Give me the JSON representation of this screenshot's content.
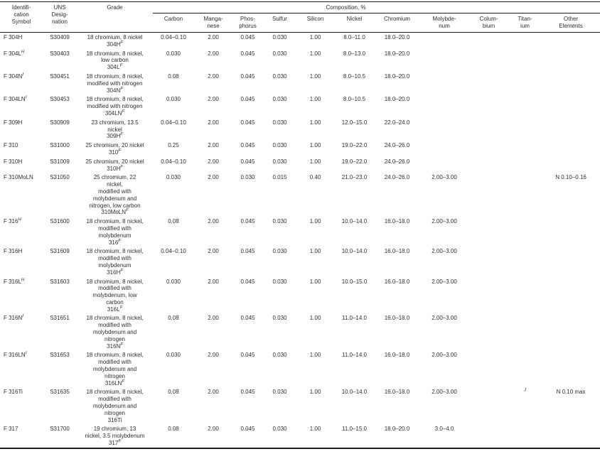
{
  "table": {
    "headers": {
      "id": [
        "Identifi-",
        "cation",
        "Symbol"
      ],
      "uns": [
        "UNS",
        "Desig-",
        "nation"
      ],
      "grade": "Grade",
      "composition": "Composition, %",
      "columns": [
        [
          "Carbon"
        ],
        [
          "Manga-",
          "nese"
        ],
        [
          "Phos-",
          "phorus"
        ],
        [
          "Sulfur"
        ],
        [
          "Silicon"
        ],
        [
          "Nickel"
        ],
        [
          "Chromium"
        ],
        [
          "Molybde-",
          "num"
        ],
        [
          "Colum-",
          "bium"
        ],
        [
          "Titan-",
          "ium"
        ],
        [
          "Other",
          "Elements"
        ]
      ]
    },
    "rows": [
      {
        "id": "F 304H",
        "id_sup": "",
        "uns": "S30409",
        "grade_lines": [
          "18 chromium, 8 nickel"
        ],
        "grade_name": "304H",
        "grade_sup": "F",
        "carbon": "0.04–0.10",
        "manganese": "2.00",
        "phosphorus": "0.045",
        "sulfur": "0.030",
        "silicon": "1.00",
        "nickel": "8.0–11.0",
        "chromium": "18.0–20.0",
        "molybdenum": "",
        "columbium": "",
        "titanium": "",
        "titanium_sup": "",
        "other": ""
      },
      {
        "id": "F 304L",
        "id_sup": "H",
        "uns": "S30403",
        "grade_lines": [
          "18 chromium, 8 nickel,",
          "low carbon"
        ],
        "grade_name": "304L",
        "grade_sup": "F",
        "carbon": "0.030",
        "manganese": "2.00",
        "phosphorus": "0.045",
        "sulfur": "0.030",
        "silicon": "1.00",
        "nickel": "8.0–13.0",
        "chromium": "18.0–20.0",
        "molybdenum": "",
        "columbium": "",
        "titanium": "",
        "titanium_sup": "",
        "other": ""
      },
      {
        "id": "F 304N",
        "id_sup": "I",
        "uns": "S30451",
        "grade_lines": [
          "18 chromium, 8 nickel,",
          "modified with nitrogen"
        ],
        "grade_name": "304N",
        "grade_sup": "F",
        "carbon": "0.08",
        "manganese": "2.00",
        "phosphorus": "0.045",
        "sulfur": "0.030",
        "silicon": "1.00",
        "nickel": "8.0–10.5",
        "chromium": "18.0–20.0",
        "molybdenum": "",
        "columbium": "",
        "titanium": "",
        "titanium_sup": "",
        "other": ""
      },
      {
        "id": "F 304LN",
        "id_sup": "I",
        "uns": "S30453",
        "grade_lines": [
          "18 chromium, 8 nickel,",
          "modified with nitrogen"
        ],
        "grade_name": "304LN",
        "grade_sup": "F",
        "carbon": "0.030",
        "manganese": "2.00",
        "phosphorus": "0.045",
        "sulfur": "0.030",
        "silicon": "1.00",
        "nickel": "8.0–10.5",
        "chromium": "18.0–20.0",
        "molybdenum": "",
        "columbium": "",
        "titanium": "",
        "titanium_sup": "",
        "other": ""
      },
      {
        "id": "F 309H",
        "id_sup": "",
        "uns": "S30909",
        "grade_lines": [
          "23 chromium, 13.5",
          "nickel"
        ],
        "grade_name": "309H",
        "grade_sup": "F",
        "carbon": "0.04–0.10",
        "manganese": "2.00",
        "phosphorus": "0.045",
        "sulfur": "0.030",
        "silicon": "1.00",
        "nickel": "12.0–15.0",
        "chromium": "22.0–24.0",
        "molybdenum": "",
        "columbium": "",
        "titanium": "",
        "titanium_sup": "",
        "other": ""
      },
      {
        "id": "F 310",
        "id_sup": "",
        "uns": "S31000",
        "grade_lines": [
          "25 chromium, 20 nickel"
        ],
        "grade_name": "310",
        "grade_sup": "F",
        "carbon": "0.25",
        "manganese": "2.00",
        "phosphorus": "0.045",
        "sulfur": "0.030",
        "silicon": "1.00",
        "nickel": "19.0–22.0",
        "chromium": "24.0–26.0",
        "molybdenum": "",
        "columbium": "",
        "titanium": "",
        "titanium_sup": "",
        "other": ""
      },
      {
        "id": "F 310H",
        "id_sup": "",
        "uns": "S31009",
        "grade_lines": [
          "25 chromium, 20 nickel"
        ],
        "grade_name": "310H",
        "grade_sup": "F",
        "carbon": "0.04–0.10",
        "manganese": "2.00",
        "phosphorus": "0.045",
        "sulfur": "0.030",
        "silicon": "1.00",
        "nickel": "19.0–22.0",
        "chromium": "24.0–26.0",
        "molybdenum": "",
        "columbium": "",
        "titanium": "",
        "titanium_sup": "",
        "other": ""
      },
      {
        "id": "F 310MoLN",
        "id_sup": "",
        "uns": "S31050",
        "grade_lines": [
          "25 chromium, 22",
          "nickel,",
          "modified with",
          "molybdenum and",
          "nitrogen, low carbon"
        ],
        "grade_name": "310MoLN",
        "grade_sup": "F",
        "carbon": "0.030",
        "manganese": "2.00",
        "phosphorus": "0.030",
        "sulfur": "0.015",
        "silicon": "0.40",
        "nickel": "21.0–23.0",
        "chromium": "24.0–26.0",
        "molybdenum": "2.00–3.00",
        "columbium": "",
        "titanium": "",
        "titanium_sup": "",
        "other": "N 0.10–0.16"
      },
      {
        "id": "F 316",
        "id_sup": "H",
        "uns": "S31600",
        "grade_lines": [
          "18 chromium, 8 nickel,",
          "modified with",
          "molybdenum"
        ],
        "grade_name": "316",
        "grade_sup": "F",
        "carbon": "0.08",
        "manganese": "2.00",
        "phosphorus": "0.045",
        "sulfur": "0.030",
        "silicon": "1.00",
        "nickel": "10.0–14.0",
        "chromium": "16.0–18.0",
        "molybdenum": "2.00–3.00",
        "columbium": "",
        "titanium": "",
        "titanium_sup": "",
        "other": ""
      },
      {
        "id": "F 316H",
        "id_sup": "",
        "uns": "S31609",
        "grade_lines": [
          "18 chromium, 8 nickel,",
          "modified with",
          "molybdenum"
        ],
        "grade_name": "316H",
        "grade_sup": "F",
        "carbon": "0.04–0.10",
        "manganese": "2.00",
        "phosphorus": "0.045",
        "sulfur": "0.030",
        "silicon": "1.00",
        "nickel": "10.0–14.0",
        "chromium": "16.0–18.0",
        "molybdenum": "2.00–3.00",
        "columbium": "",
        "titanium": "",
        "titanium_sup": "",
        "other": ""
      },
      {
        "id": "F 316L",
        "id_sup": "H",
        "uns": "S31603",
        "grade_lines": [
          "18 chromium, 8 nickel,",
          "modified with",
          "molybdenum, low",
          "carbon"
        ],
        "grade_name": "316L",
        "grade_sup": "F",
        "carbon": "0.030",
        "manganese": "2.00",
        "phosphorus": "0.045",
        "sulfur": "0.030",
        "silicon": "1.00",
        "nickel": "10.0–15.0",
        "chromium": "16.0–18.0",
        "molybdenum": "2.00–3.00",
        "columbium": "",
        "titanium": "",
        "titanium_sup": "",
        "other": ""
      },
      {
        "id": "F 316N",
        "id_sup": "I",
        "uns": "S31651",
        "grade_lines": [
          "18 chromium, 8 nickel,",
          "modified with",
          "molybdenum and",
          "nitrogen"
        ],
        "grade_name": "316N",
        "grade_sup": "F",
        "carbon": "0.08",
        "manganese": "2.00",
        "phosphorus": "0.045",
        "sulfur": "0.030",
        "silicon": "1.00",
        "nickel": "11.0–14.0",
        "chromium": "16.0–18.0",
        "molybdenum": "2.00–3.00",
        "columbium": "",
        "titanium": "",
        "titanium_sup": "",
        "other": ""
      },
      {
        "id": "F 316LN",
        "id_sup": "I",
        "uns": "S31653",
        "grade_lines": [
          "18 chromium, 8 nickel,",
          "modified with",
          "molybdenum and",
          "nitrogen"
        ],
        "grade_name": "316LN",
        "grade_sup": "F",
        "carbon": "0.030",
        "manganese": "2.00",
        "phosphorus": "0.045",
        "sulfur": "0.030",
        "silicon": "1.00",
        "nickel": "11.0–14.0",
        "chromium": "16.0–18.0",
        "molybdenum": "2.00–3.00",
        "columbium": "",
        "titanium": "",
        "titanium_sup": "",
        "other": ""
      },
      {
        "id": "F 316Ti",
        "id_sup": "",
        "uns": "S31635",
        "grade_lines": [
          "18 chromium, 8 nickel,",
          "modified with",
          "molybdenum and",
          "nitrogen"
        ],
        "grade_name": "316Ti",
        "grade_sup": "",
        "carbon": "0.08",
        "manganese": "2.00",
        "phosphorus": "0.045",
        "sulfur": "0.030",
        "silicon": "1.00",
        "nickel": "10.0–14.0",
        "chromium": "16.0–18.0",
        "molybdenum": "2.00–3.00",
        "columbium": "",
        "titanium": "",
        "titanium_sup": "J",
        "other": "N 0.10 max"
      },
      {
        "id": "F 317",
        "id_sup": "",
        "uns": "S31700",
        "grade_lines": [
          "19 chromium, 13",
          "nickel, 3.5 molybdenum"
        ],
        "grade_name": "317",
        "grade_sup": "F",
        "carbon": "0.08",
        "manganese": "2.00",
        "phosphorus": "0.045",
        "sulfur": "0.030",
        "silicon": "1.00",
        "nickel": "11.0–15.0",
        "chromium": "18.0–20.0",
        "molybdenum": "3.0–4.0",
        "columbium": "",
        "titanium": "",
        "titanium_sup": "",
        "other": ""
      }
    ]
  }
}
